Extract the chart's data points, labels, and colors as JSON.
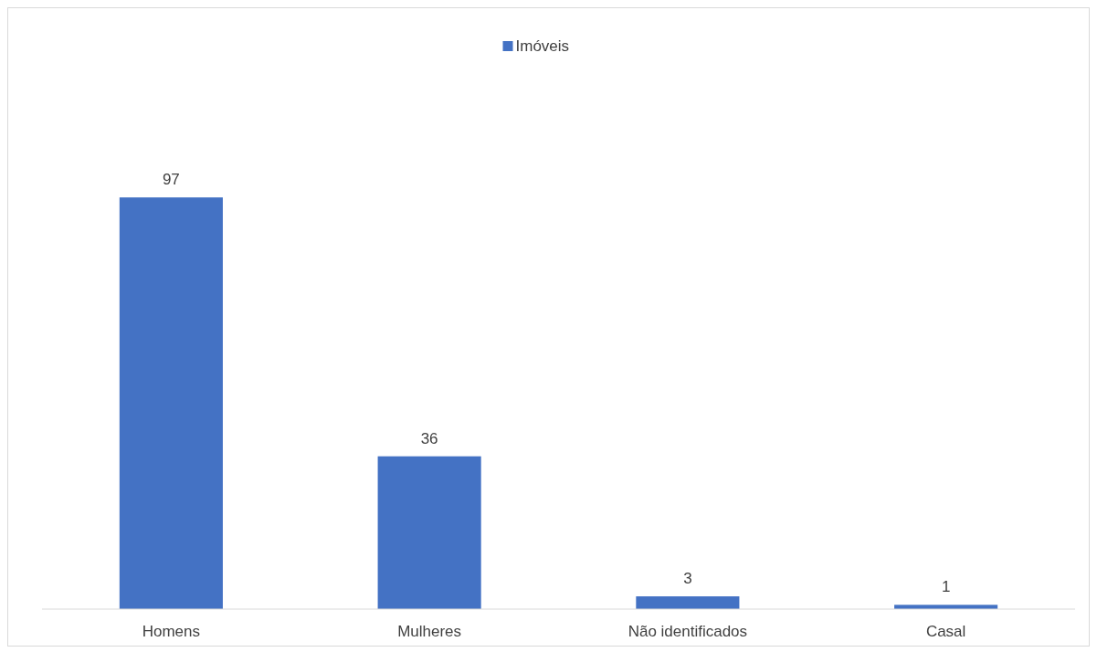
{
  "chart_data": {
    "type": "bar",
    "categories": [
      "Homens",
      "Mulheres",
      "Não identificados",
      "Casal"
    ],
    "series": [
      {
        "name": "Imóveis",
        "color": "#4472c4",
        "values": [
          97,
          36,
          3,
          1
        ]
      }
    ],
    "data_labels": true,
    "legend": "top",
    "grid": false
  }
}
